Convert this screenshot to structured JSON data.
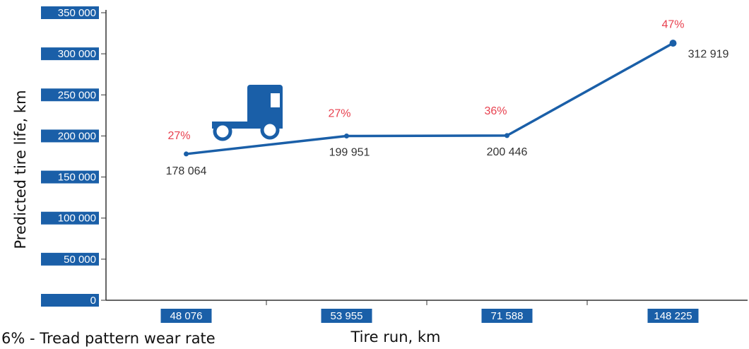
{
  "chart_data": {
    "type": "line",
    "y_label": "Predicted tire life, km",
    "x_label": "Tire run, km",
    "footnote": "6% - Tread pattern wear rate",
    "categories": [
      "48 076",
      "53 955",
      "71 588",
      "148 225"
    ],
    "series": [
      {
        "color": "#1a5fa8",
        "values": [
          178064,
          199951,
          200446,
          312919
        ],
        "value_labels": [
          "178 064",
          "199 951",
          "200 446",
          "312 919"
        ]
      }
    ],
    "annotations": [
      "27%",
      "27%",
      "36%",
      "47%"
    ],
    "annotation_color": "#e8414f",
    "ylim": [
      0,
      350000
    ],
    "yticks": [
      0,
      {
        "value": 50000,
        "label": "50 000"
      },
      {
        "value": 100000,
        "label": "100 000"
      },
      {
        "value": 150000,
        "label": "150 000"
      },
      {
        "value": 200000,
        "label": "200 000"
      },
      {
        "value": 250000,
        "label": "250 000"
      },
      {
        "value": 300000,
        "label": "300 000"
      },
      {
        "value": 350000,
        "label": "350 000"
      }
    ]
  }
}
